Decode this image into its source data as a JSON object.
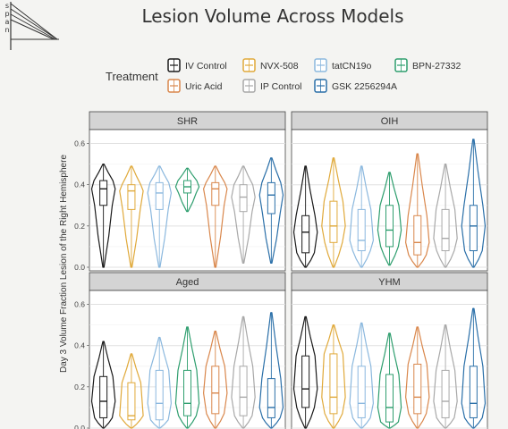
{
  "logo": {
    "letters": [
      "s",
      "p",
      "a",
      "n"
    ]
  },
  "title": "Lesion Volume Across Models",
  "legend": {
    "title": "Treatment",
    "items": [
      {
        "label": "IV Control",
        "color": "#1a1a1a"
      },
      {
        "label": "NVX-508",
        "color": "#e0a93a"
      },
      {
        "label": "tatCN19o",
        "color": "#8bb8de"
      },
      {
        "label": "BPN-27332",
        "color": "#2e9e6e"
      },
      {
        "label": "Uric Acid",
        "color": "#d9874c"
      },
      {
        "label": "IP Control",
        "color": "#a8a8a8"
      },
      {
        "label": "GSK 2256294A",
        "color": "#2a6fa8"
      }
    ]
  },
  "chart_data": {
    "type": "violin",
    "ylabel": "Day 3 Volume Fraction Lesion of the Right Hemisphere",
    "ylim": [
      0,
      0.65
    ],
    "yticks": [
      "0.0",
      "0.2",
      "0.4",
      "0.6"
    ],
    "grid": true,
    "legend_position": "top",
    "treatments": [
      "IV Control",
      "NVX-508",
      "tatCN19o",
      "BPN-27332",
      "Uric Acid",
      "IP Control",
      "GSK 2256294A"
    ],
    "panels": [
      {
        "name": "SHR",
        "violins": [
          {
            "treatment": "IV Control",
            "min": 0.0,
            "q1": 0.3,
            "median": 0.38,
            "q3": 0.42,
            "max": 0.5
          },
          {
            "treatment": "NVX-508",
            "min": 0.0,
            "q1": 0.28,
            "median": 0.37,
            "q3": 0.4,
            "max": 0.49
          },
          {
            "treatment": "tatCN19o",
            "min": 0.0,
            "q1": 0.28,
            "median": 0.36,
            "q3": 0.41,
            "max": 0.49
          },
          {
            "treatment": "BPN-27332",
            "min": 0.27,
            "q1": 0.36,
            "median": 0.39,
            "q3": 0.42,
            "max": 0.48
          },
          {
            "treatment": "Uric Acid",
            "min": 0.0,
            "q1": 0.3,
            "median": 0.38,
            "q3": 0.41,
            "max": 0.49
          },
          {
            "treatment": "IP Control",
            "min": 0.02,
            "q1": 0.27,
            "median": 0.34,
            "q3": 0.4,
            "max": 0.49
          },
          {
            "treatment": "GSK 2256294A",
            "min": 0.02,
            "q1": 0.26,
            "median": 0.35,
            "q3": 0.41,
            "max": 0.53
          }
        ]
      },
      {
        "name": "OIH",
        "violins": [
          {
            "treatment": "IV Control",
            "min": 0.0,
            "q1": 0.07,
            "median": 0.17,
            "q3": 0.25,
            "max": 0.49
          },
          {
            "treatment": "NVX-508",
            "min": 0.0,
            "q1": 0.12,
            "median": 0.2,
            "q3": 0.32,
            "max": 0.53
          },
          {
            "treatment": "tatCN19o",
            "min": 0.0,
            "q1": 0.08,
            "median": 0.13,
            "q3": 0.28,
            "max": 0.49
          },
          {
            "treatment": "BPN-27332",
            "min": 0.01,
            "q1": 0.1,
            "median": 0.18,
            "q3": 0.3,
            "max": 0.46
          },
          {
            "treatment": "Uric Acid",
            "min": 0.0,
            "q1": 0.06,
            "median": 0.12,
            "q3": 0.25,
            "max": 0.55
          },
          {
            "treatment": "IP Control",
            "min": 0.0,
            "q1": 0.08,
            "median": 0.14,
            "q3": 0.28,
            "max": 0.5
          },
          {
            "treatment": "GSK 2256294A",
            "min": 0.0,
            "q1": 0.08,
            "median": 0.2,
            "q3": 0.3,
            "max": 0.62
          }
        ]
      },
      {
        "name": "Aged",
        "violins": [
          {
            "treatment": "IV Control",
            "min": 0.0,
            "q1": 0.05,
            "median": 0.13,
            "q3": 0.25,
            "max": 0.42
          },
          {
            "treatment": "NVX-508",
            "min": 0.0,
            "q1": 0.04,
            "median": 0.06,
            "q3": 0.22,
            "max": 0.36
          },
          {
            "treatment": "tatCN19o",
            "min": 0.0,
            "q1": 0.04,
            "median": 0.12,
            "q3": 0.28,
            "max": 0.44
          },
          {
            "treatment": "BPN-27332",
            "min": 0.0,
            "q1": 0.06,
            "median": 0.12,
            "q3": 0.28,
            "max": 0.49
          },
          {
            "treatment": "Uric Acid",
            "min": 0.0,
            "q1": 0.07,
            "median": 0.17,
            "q3": 0.3,
            "max": 0.47
          },
          {
            "treatment": "IP Control",
            "min": 0.0,
            "q1": 0.06,
            "median": 0.15,
            "q3": 0.3,
            "max": 0.54
          },
          {
            "treatment": "GSK 2256294A",
            "min": 0.0,
            "q1": 0.05,
            "median": 0.1,
            "q3": 0.24,
            "max": 0.56
          }
        ]
      },
      {
        "name": "YHM",
        "violins": [
          {
            "treatment": "IV Control",
            "min": 0.0,
            "q1": 0.1,
            "median": 0.19,
            "q3": 0.35,
            "max": 0.54
          },
          {
            "treatment": "NVX-508",
            "min": 0.0,
            "q1": 0.07,
            "median": 0.15,
            "q3": 0.36,
            "max": 0.5
          },
          {
            "treatment": "tatCN19o",
            "min": 0.0,
            "q1": 0.05,
            "median": 0.12,
            "q3": 0.3,
            "max": 0.51
          },
          {
            "treatment": "BPN-27332",
            "min": 0.0,
            "q1": 0.03,
            "median": 0.1,
            "q3": 0.26,
            "max": 0.46
          },
          {
            "treatment": "Uric Acid",
            "min": 0.0,
            "q1": 0.07,
            "median": 0.15,
            "q3": 0.31,
            "max": 0.49
          },
          {
            "treatment": "IP Control",
            "min": 0.0,
            "q1": 0.05,
            "median": 0.13,
            "q3": 0.28,
            "max": 0.5
          },
          {
            "treatment": "GSK 2256294A",
            "min": 0.0,
            "q1": 0.05,
            "median": 0.12,
            "q3": 0.3,
            "max": 0.58
          }
        ]
      }
    ]
  }
}
